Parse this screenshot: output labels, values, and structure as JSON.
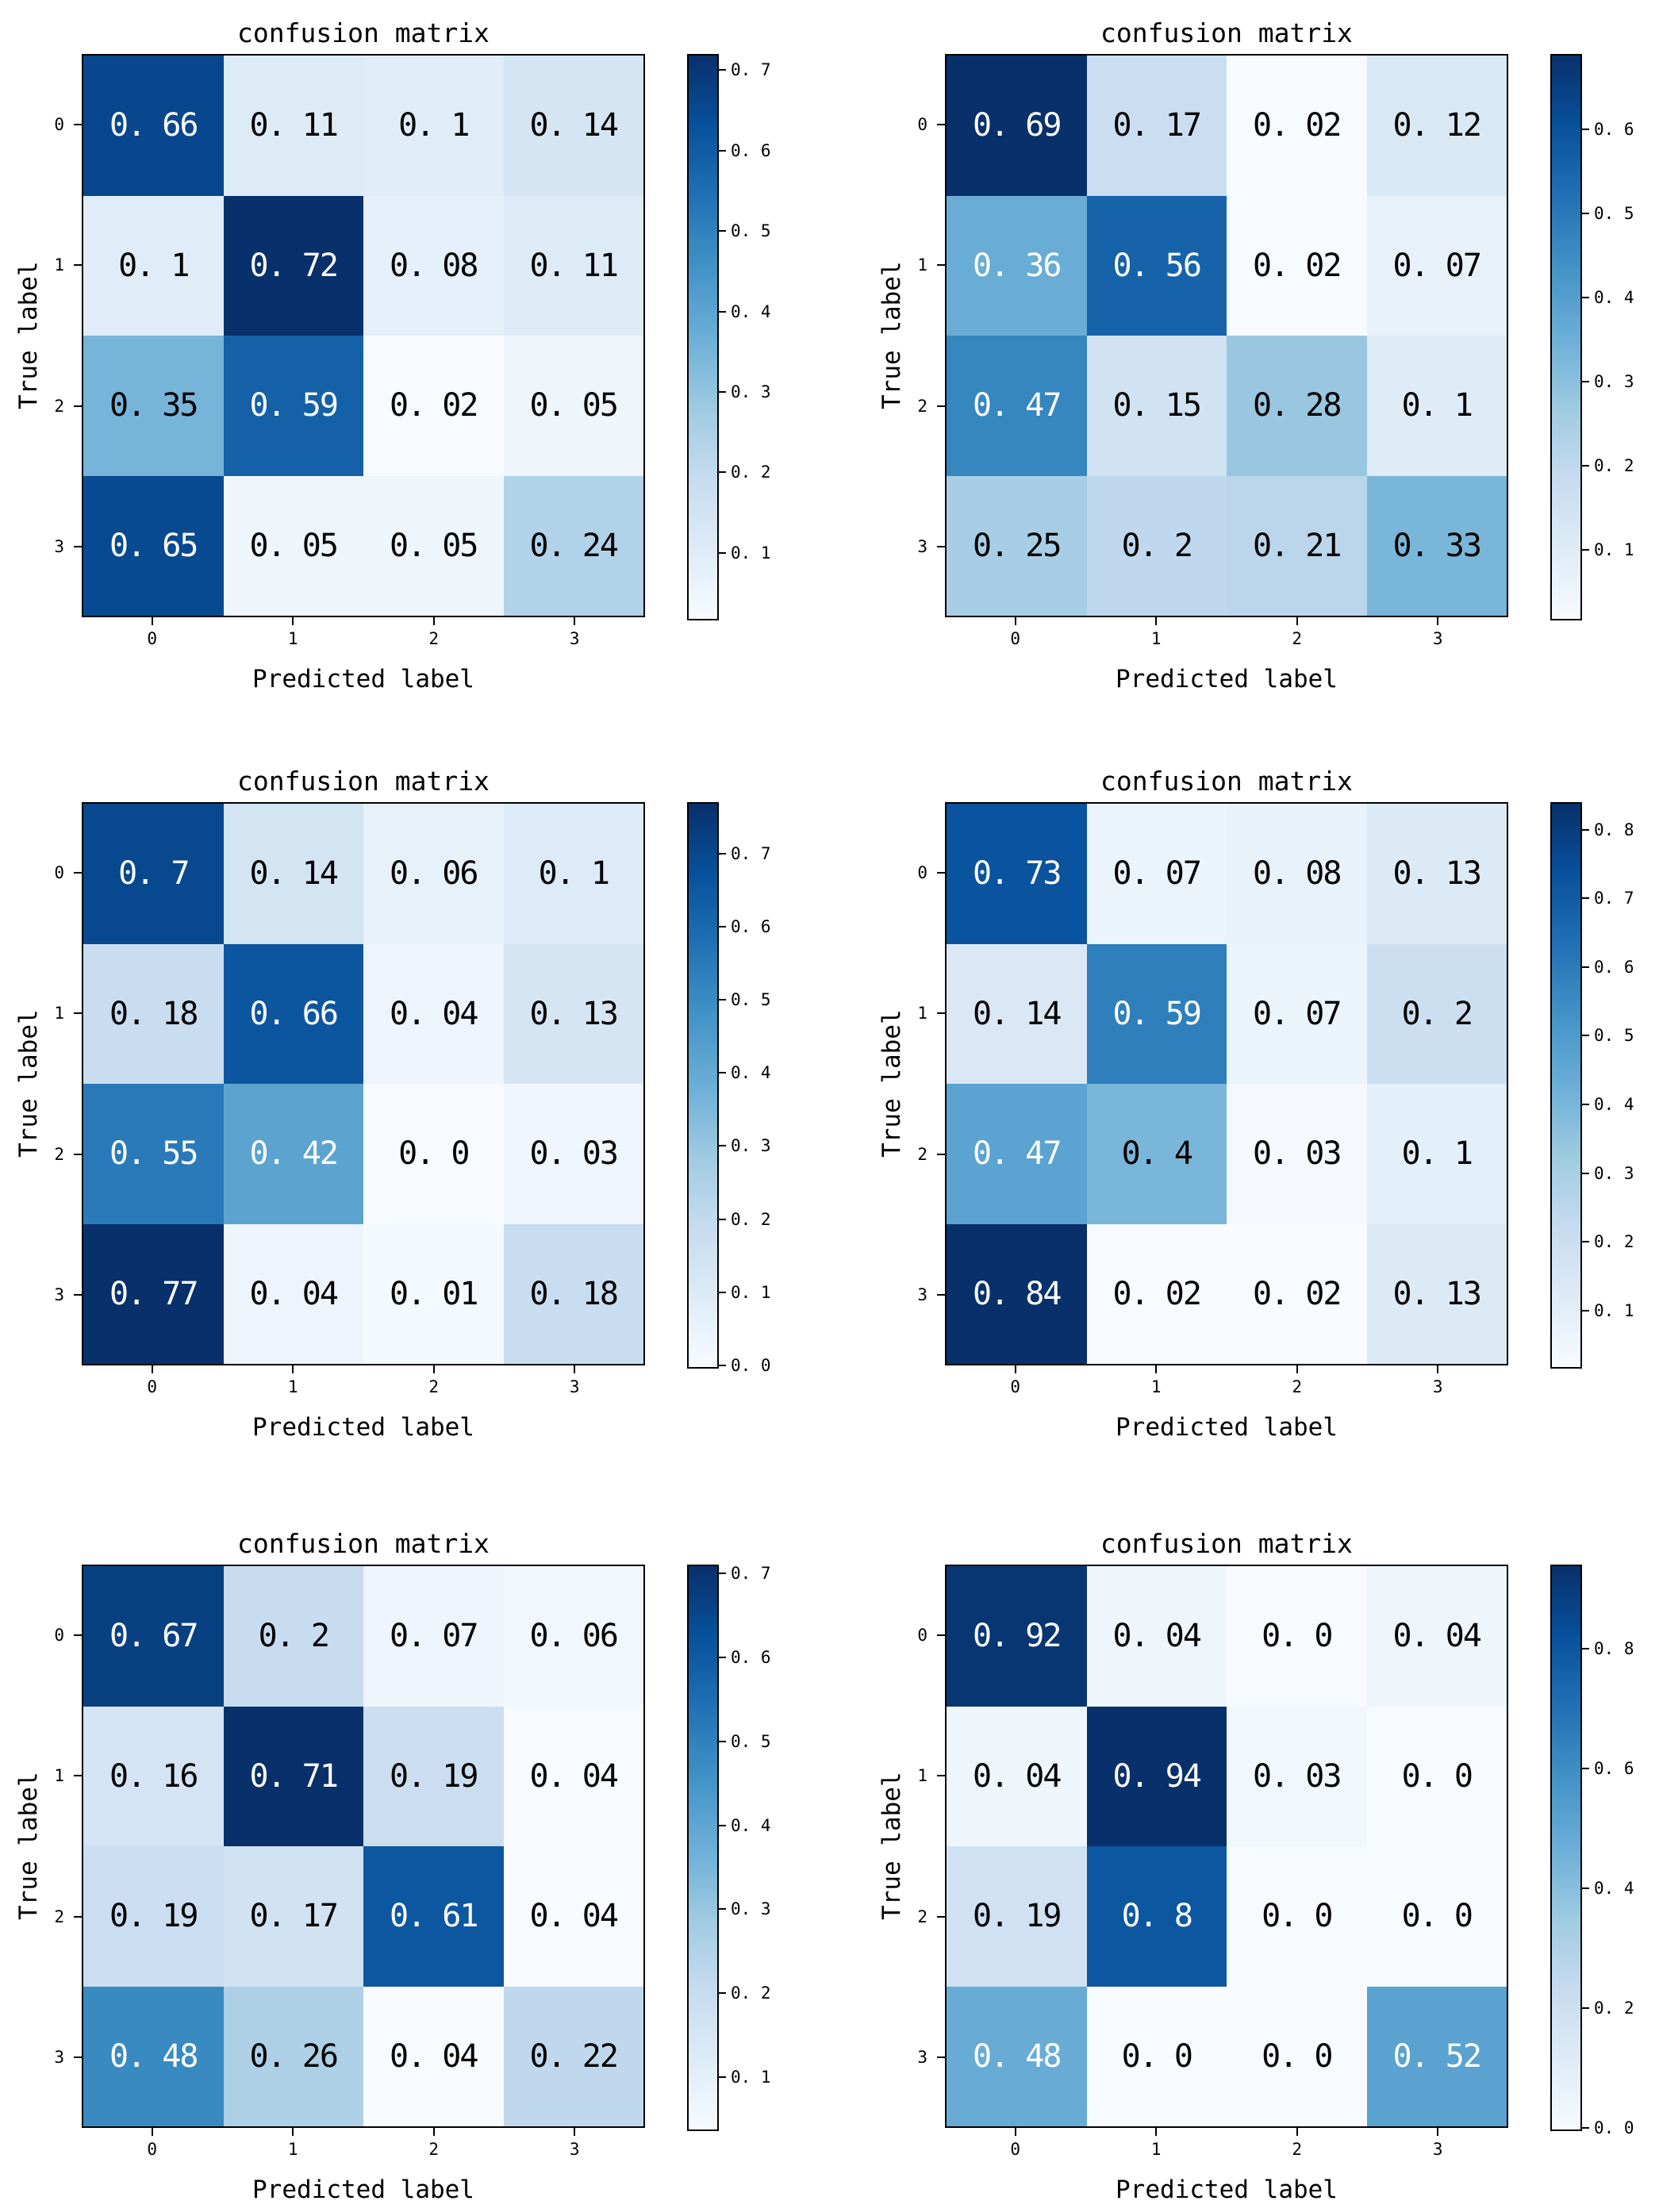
{
  "figure": {
    "background": "#ffffff",
    "grid": "3 rows x 2 columns of confusion-matrix heatmaps"
  },
  "colors": {
    "background": "#ffffff",
    "axes_border": "#000000",
    "tick_color": "#000000",
    "cell_text_on_dark": "#ffffff",
    "cell_text_on_light": "#000000",
    "colormap_blues_anchors": [
      "#f7fbff",
      "#deebf7",
      "#c6dbef",
      "#9ecae1",
      "#6baed6",
      "#4292c6",
      "#2171b5",
      "#08519c",
      "#08306b"
    ]
  },
  "chart_data": [
    {
      "type": "heatmap",
      "title": "confusion matrix",
      "xlabel": "Predicted label",
      "ylabel": "True label",
      "x_tick_labels": [
        "0",
        "1",
        "2",
        "3"
      ],
      "y_tick_labels": [
        "0",
        "1",
        "2",
        "3"
      ],
      "matrix": [
        [
          0.66,
          0.11,
          0.1,
          0.14
        ],
        [
          0.1,
          0.72,
          0.08,
          0.11
        ],
        [
          0.35,
          0.59,
          0.02,
          0.05
        ],
        [
          0.65,
          0.05,
          0.05,
          0.24
        ]
      ],
      "vmin": 0.02,
      "vmax": 0.72,
      "colorbar_ticks": [
        0.1,
        0.2,
        0.3,
        0.4,
        0.5,
        0.6,
        0.7
      ],
      "colormap": "Blues",
      "colorbar_position": "right"
    },
    {
      "type": "heatmap",
      "title": "confusion matrix",
      "xlabel": "Predicted label",
      "ylabel": "True label",
      "x_tick_labels": [
        "0",
        "1",
        "2",
        "3"
      ],
      "y_tick_labels": [
        "0",
        "1",
        "2",
        "3"
      ],
      "matrix": [
        [
          0.69,
          0.17,
          0.02,
          0.12
        ],
        [
          0.36,
          0.56,
          0.02,
          0.07
        ],
        [
          0.47,
          0.15,
          0.28,
          0.1
        ],
        [
          0.25,
          0.2,
          0.21,
          0.33
        ]
      ],
      "vmin": 0.02,
      "vmax": 0.69,
      "colorbar_ticks": [
        0.1,
        0.2,
        0.3,
        0.4,
        0.5,
        0.6
      ],
      "colormap": "Blues",
      "colorbar_position": "right"
    },
    {
      "type": "heatmap",
      "title": "confusion matrix",
      "xlabel": "Predicted label",
      "ylabel": "True label",
      "x_tick_labels": [
        "0",
        "1",
        "2",
        "3"
      ],
      "y_tick_labels": [
        "0",
        "1",
        "2",
        "3"
      ],
      "matrix": [
        [
          0.7,
          0.14,
          0.06,
          0.1
        ],
        [
          0.18,
          0.66,
          0.04,
          0.13
        ],
        [
          0.55,
          0.42,
          0.0,
          0.03
        ],
        [
          0.77,
          0.04,
          0.01,
          0.18
        ]
      ],
      "vmin": 0.0,
      "vmax": 0.77,
      "colorbar_ticks": [
        0.0,
        0.1,
        0.2,
        0.3,
        0.4,
        0.5,
        0.6,
        0.7
      ],
      "colormap": "Blues",
      "colorbar_position": "right"
    },
    {
      "type": "heatmap",
      "title": "confusion matrix",
      "xlabel": "Predicted label",
      "ylabel": "True label",
      "x_tick_labels": [
        "0",
        "1",
        "2",
        "3"
      ],
      "y_tick_labels": [
        "0",
        "1",
        "2",
        "3"
      ],
      "matrix": [
        [
          0.73,
          0.07,
          0.08,
          0.13
        ],
        [
          0.14,
          0.59,
          0.07,
          0.2
        ],
        [
          0.47,
          0.4,
          0.03,
          0.1
        ],
        [
          0.84,
          0.02,
          0.02,
          0.13
        ]
      ],
      "vmin": 0.02,
      "vmax": 0.84,
      "colorbar_ticks": [
        0.1,
        0.2,
        0.3,
        0.4,
        0.5,
        0.6,
        0.7,
        0.8
      ],
      "colormap": "Blues",
      "colorbar_position": "right"
    },
    {
      "type": "heatmap",
      "title": "confusion matrix",
      "xlabel": "Predicted label",
      "ylabel": "True label",
      "x_tick_labels": [
        "0",
        "1",
        "2",
        "3"
      ],
      "y_tick_labels": [
        "0",
        "1",
        "2",
        "3"
      ],
      "matrix": [
        [
          0.67,
          0.2,
          0.07,
          0.06
        ],
        [
          0.16,
          0.71,
          0.19,
          0.04
        ],
        [
          0.19,
          0.17,
          0.61,
          0.04
        ],
        [
          0.48,
          0.26,
          0.04,
          0.22
        ]
      ],
      "vmin": 0.04,
      "vmax": 0.71,
      "colorbar_ticks": [
        0.1,
        0.2,
        0.3,
        0.4,
        0.5,
        0.6,
        0.7
      ],
      "colormap": "Blues",
      "colorbar_position": "right"
    },
    {
      "type": "heatmap",
      "title": "confusion matrix",
      "xlabel": "Predicted label",
      "ylabel": "True label",
      "x_tick_labels": [
        "0",
        "1",
        "2",
        "3"
      ],
      "y_tick_labels": [
        "0",
        "1",
        "2",
        "3"
      ],
      "matrix": [
        [
          0.92,
          0.04,
          0.0,
          0.04
        ],
        [
          0.04,
          0.94,
          0.03,
          0.0
        ],
        [
          0.19,
          0.8,
          0.0,
          0.0
        ],
        [
          0.48,
          0.0,
          0.0,
          0.52
        ]
      ],
      "vmin": 0.0,
      "vmax": 0.94,
      "colorbar_ticks": [
        0.0,
        0.2,
        0.4,
        0.6,
        0.8
      ],
      "colormap": "Blues",
      "colorbar_position": "right"
    }
  ]
}
